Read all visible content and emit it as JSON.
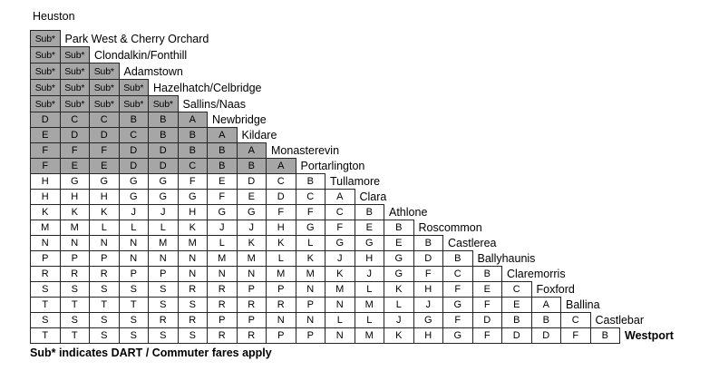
{
  "title": "Heuston",
  "footnote": "Sub* indicates DART / Commuter fares apply",
  "colors": {
    "shaded_cell": "#a6a6a6",
    "border": "#262626",
    "background": "#ffffff",
    "text": "#000000"
  },
  "chart_data": {
    "type": "table",
    "title": "Heuston fare-band staircase matrix",
    "origin": "Heuston",
    "rows": [
      {
        "station": "Park West & Cherry Orchard",
        "shaded": true,
        "bold_label": false,
        "cells": [
          "Sub*"
        ]
      },
      {
        "station": "Clondalkin/Fonthill",
        "shaded": true,
        "bold_label": false,
        "cells": [
          "Sub*",
          "Sub*"
        ]
      },
      {
        "station": "Adamstown",
        "shaded": true,
        "bold_label": false,
        "cells": [
          "Sub*",
          "Sub*",
          "Sub*"
        ]
      },
      {
        "station": "Hazelhatch/Celbridge",
        "shaded": true,
        "bold_label": false,
        "cells": [
          "Sub*",
          "Sub*",
          "Sub*",
          "Sub*"
        ]
      },
      {
        "station": "Sallins/Naas",
        "shaded": true,
        "bold_label": false,
        "cells": [
          "Sub*",
          "Sub*",
          "Sub*",
          "Sub*",
          "Sub*"
        ]
      },
      {
        "station": "Newbridge",
        "shaded": true,
        "bold_label": false,
        "cells": [
          "D",
          "C",
          "C",
          "B",
          "B",
          "A"
        ]
      },
      {
        "station": "Kildare",
        "shaded": true,
        "bold_label": false,
        "cells": [
          "E",
          "D",
          "D",
          "C",
          "B",
          "B",
          "A"
        ]
      },
      {
        "station": "Monasterevin",
        "shaded": true,
        "bold_label": false,
        "cells": [
          "F",
          "F",
          "F",
          "D",
          "D",
          "B",
          "B",
          "A"
        ]
      },
      {
        "station": "Portarlington",
        "shaded": true,
        "bold_label": false,
        "cells": [
          "F",
          "E",
          "E",
          "D",
          "D",
          "C",
          "B",
          "B",
          "A"
        ]
      },
      {
        "station": "Tullamore",
        "shaded": false,
        "bold_label": false,
        "cells": [
          "H",
          "G",
          "G",
          "G",
          "G",
          "F",
          "E",
          "D",
          "C",
          "B"
        ]
      },
      {
        "station": "Clara",
        "shaded": false,
        "bold_label": false,
        "cells": [
          "H",
          "H",
          "H",
          "G",
          "G",
          "G",
          "F",
          "E",
          "D",
          "C",
          "A"
        ]
      },
      {
        "station": "Athlone",
        "shaded": false,
        "bold_label": false,
        "cells": [
          "K",
          "K",
          "K",
          "J",
          "J",
          "H",
          "G",
          "G",
          "F",
          "F",
          "C",
          "B"
        ]
      },
      {
        "station": "Roscommon",
        "shaded": false,
        "bold_label": false,
        "cells": [
          "M",
          "M",
          "L",
          "L",
          "L",
          "K",
          "J",
          "J",
          "H",
          "G",
          "F",
          "E",
          "B"
        ]
      },
      {
        "station": "Castlerea",
        "shaded": false,
        "bold_label": false,
        "cells": [
          "N",
          "N",
          "N",
          "N",
          "M",
          "M",
          "L",
          "K",
          "K",
          "L",
          "G",
          "G",
          "E",
          "B"
        ]
      },
      {
        "station": "Ballyhaunis",
        "shaded": false,
        "bold_label": false,
        "cells": [
          "P",
          "P",
          "P",
          "N",
          "N",
          "N",
          "M",
          "M",
          "L",
          "K",
          "J",
          "H",
          "G",
          "D",
          "B"
        ]
      },
      {
        "station": "Claremorris",
        "shaded": false,
        "bold_label": false,
        "cells": [
          "R",
          "R",
          "R",
          "P",
          "P",
          "N",
          "N",
          "N",
          "M",
          "M",
          "K",
          "J",
          "G",
          "F",
          "C",
          "B"
        ]
      },
      {
        "station": "Foxford",
        "shaded": false,
        "bold_label": false,
        "cells": [
          "S",
          "S",
          "S",
          "S",
          "S",
          "R",
          "R",
          "P",
          "P",
          "N",
          "M",
          "L",
          "K",
          "H",
          "F",
          "E",
          "C"
        ]
      },
      {
        "station": "Ballina",
        "shaded": false,
        "bold_label": false,
        "cells": [
          "T",
          "T",
          "T",
          "T",
          "S",
          "S",
          "R",
          "R",
          "R",
          "P",
          "N",
          "M",
          "L",
          "J",
          "G",
          "F",
          "E",
          "A"
        ]
      },
      {
        "station": "Castlebar",
        "shaded": false,
        "bold_label": false,
        "cells": [
          "S",
          "S",
          "S",
          "S",
          "R",
          "R",
          "P",
          "P",
          "N",
          "N",
          "L",
          "L",
          "J",
          "G",
          "F",
          "D",
          "B",
          "B",
          "C"
        ]
      },
      {
        "station": "Westport",
        "shaded": false,
        "bold_label": true,
        "cells": [
          "T",
          "T",
          "S",
          "S",
          "S",
          "S",
          "R",
          "R",
          "P",
          "P",
          "N",
          "M",
          "K",
          "H",
          "G",
          "F",
          "D",
          "D",
          "F",
          "B"
        ]
      }
    ]
  }
}
